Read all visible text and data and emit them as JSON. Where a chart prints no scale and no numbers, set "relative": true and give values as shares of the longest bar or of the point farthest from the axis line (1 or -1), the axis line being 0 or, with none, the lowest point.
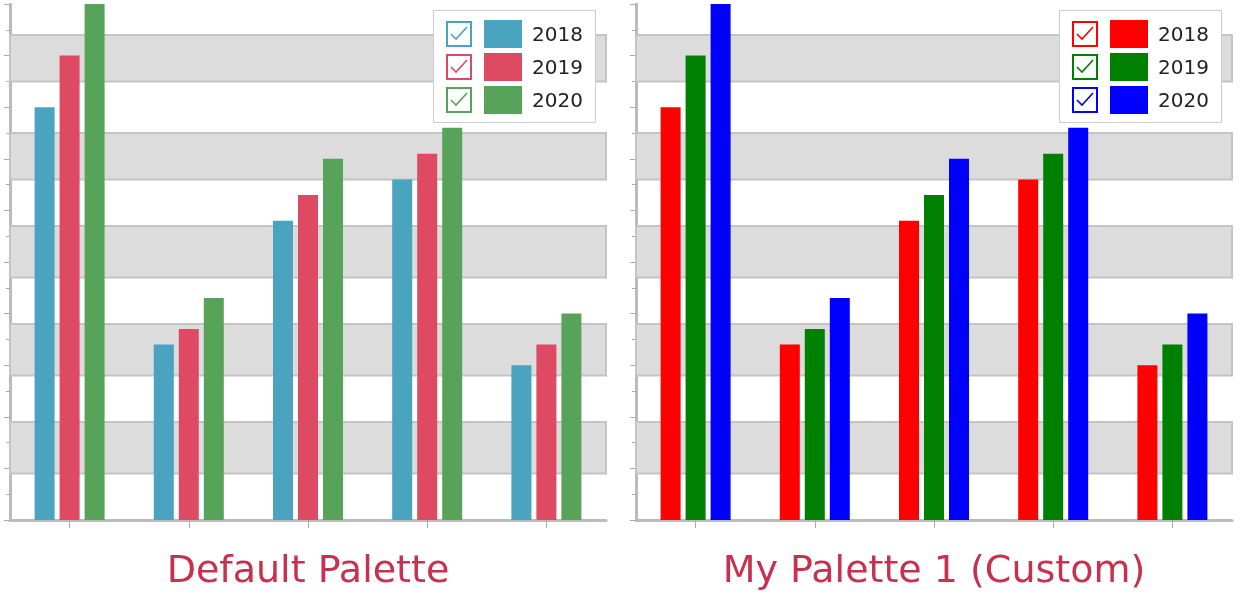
{
  "chart_data": [
    {
      "type": "bar",
      "title": "Default Palette",
      "relative": true,
      "categories": [
        null,
        null,
        null,
        null,
        null
      ],
      "legend": "top right",
      "bands": [
        {
          "axis": "y",
          "from": 0.85,
          "to": 0.94,
          "color": "#dcdcdc"
        },
        {
          "axis": "y",
          "from": 0.66,
          "to": 0.75,
          "color": "#dcdcdc"
        },
        {
          "axis": "y",
          "from": 0.47,
          "to": 0.57,
          "color": "#dcdcdc"
        },
        {
          "axis": "y",
          "from": 0.28,
          "to": 0.38,
          "color": "#dcdcdc"
        },
        {
          "axis": "y",
          "from": 0.09,
          "to": 0.19,
          "color": "#dcdcdc"
        }
      ],
      "series": [
        {
          "name": "2018",
          "color": "#4aa3bf",
          "values": [
            0.8,
            0.34,
            0.58,
            0.66,
            0.3
          ]
        },
        {
          "name": "2019",
          "color": "#dd4a62",
          "values": [
            0.9,
            0.37,
            0.63,
            0.71,
            0.34
          ]
        },
        {
          "name": "2020",
          "color": "#58a35a",
          "values": [
            1,
            0.43,
            0.7,
            0.76,
            0.4
          ]
        }
      ]
    },
    {
      "type": "bar",
      "title": "My Palette 1 (Custom)",
      "relative": true,
      "categories": [
        null,
        null,
        null,
        null,
        null
      ],
      "legend": "top right",
      "bands": [
        {
          "axis": "y",
          "from": 0.85,
          "to": 0.94,
          "color": "#dcdcdc"
        },
        {
          "axis": "y",
          "from": 0.66,
          "to": 0.75,
          "color": "#dcdcdc"
        },
        {
          "axis": "y",
          "from": 0.47,
          "to": 0.57,
          "color": "#dcdcdc"
        },
        {
          "axis": "y",
          "from": 0.28,
          "to": 0.38,
          "color": "#dcdcdc"
        },
        {
          "axis": "y",
          "from": 0.09,
          "to": 0.19,
          "color": "#dcdcdc"
        }
      ],
      "series": [
        {
          "name": "2018",
          "color": "#ff0000",
          "values": [
            0.8,
            0.34,
            0.58,
            0.66,
            0.3
          ]
        },
        {
          "name": "2019",
          "color": "#008000",
          "values": [
            0.9,
            0.37,
            0.63,
            0.71,
            0.34
          ]
        },
        {
          "name": "2020",
          "color": "#0000ff",
          "values": [
            1,
            0.43,
            0.7,
            0.76,
            0.4
          ]
        }
      ]
    }
  ]
}
